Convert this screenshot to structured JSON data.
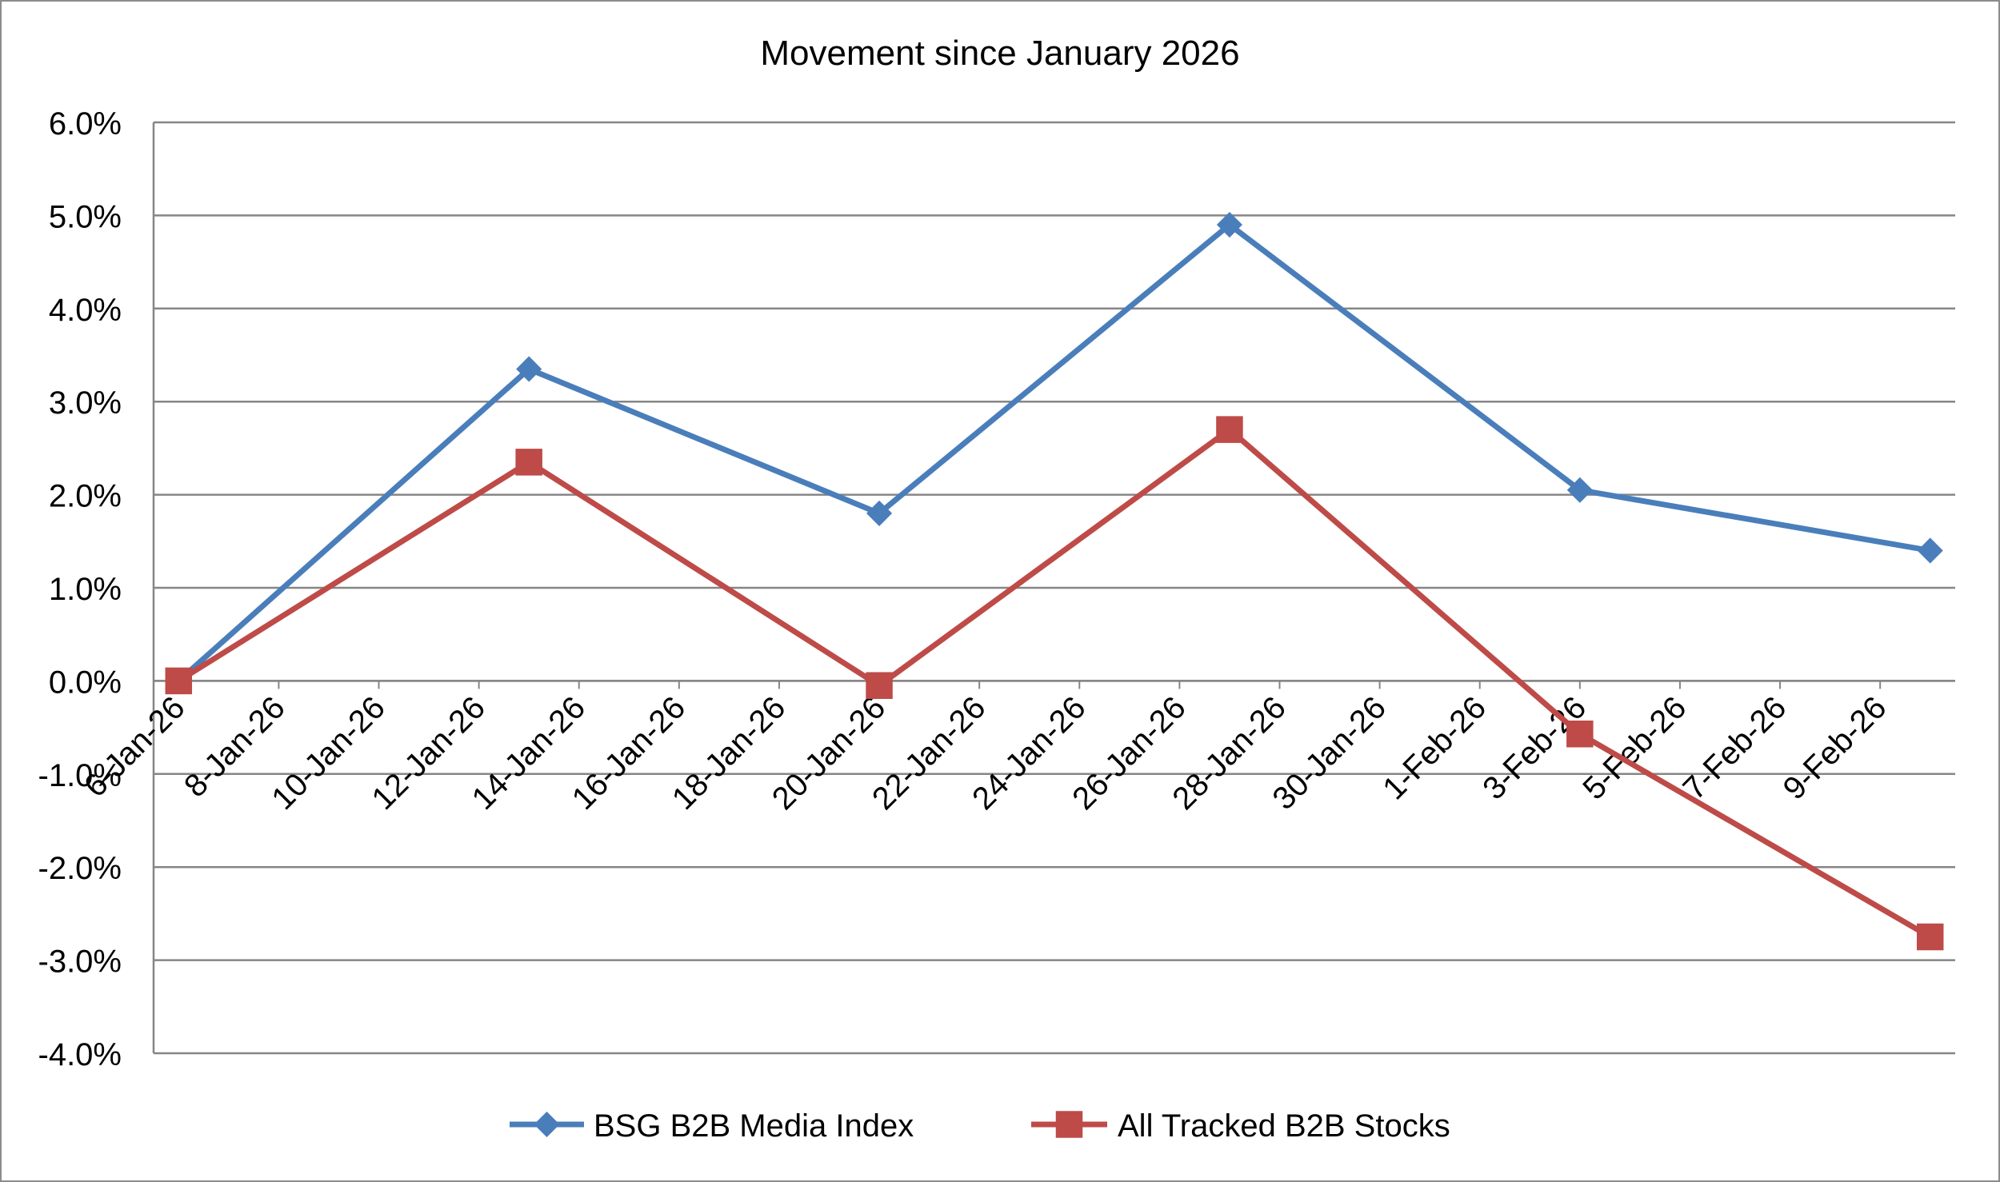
{
  "chart_data": {
    "type": "line",
    "title": "Movement since January 2026",
    "xlabel": "",
    "ylabel": "",
    "ylim": [
      -0.04,
      0.06
    ],
    "yticks": [
      "6.0%",
      "5.0%",
      "4.0%",
      "3.0%",
      "2.0%",
      "1.0%",
      "0.0%",
      "-1.0%",
      "-2.0%",
      "-3.0%",
      "-4.0%"
    ],
    "x_range": [
      "6-Jan-26",
      "11-Feb-26"
    ],
    "xticks": [
      "6-Jan-26",
      "8-Jan-26",
      "10-Jan-26",
      "12-Jan-26",
      "14-Jan-26",
      "16-Jan-26",
      "18-Jan-26",
      "20-Jan-26",
      "22-Jan-26",
      "24-Jan-26",
      "26-Jan-26",
      "28-Jan-26",
      "30-Jan-26",
      "1-Feb-26",
      "3-Feb-26",
      "5-Feb-26",
      "7-Feb-26",
      "9-Feb-26"
    ],
    "grid": true,
    "legend_position": "bottom",
    "series": [
      {
        "name": "BSG B2B Media Index",
        "color": "#4a7ebb",
        "marker": "diamond",
        "x": [
          "6-Jan-26",
          "13-Jan-26",
          "20-Jan-26",
          "27-Jan-26",
          "3-Feb-26",
          "10-Feb-26"
        ],
        "values": [
          0.0,
          0.0335,
          0.018,
          0.049,
          0.0205,
          0.014
        ]
      },
      {
        "name": "All Tracked B2B Stocks",
        "color": "#be4b48",
        "marker": "square",
        "x": [
          "6-Jan-26",
          "13-Jan-26",
          "20-Jan-26",
          "27-Jan-26",
          "3-Feb-26",
          "10-Feb-26"
        ],
        "values": [
          0.0,
          0.0235,
          -0.0005,
          0.027,
          -0.0057,
          -0.0275
        ]
      }
    ]
  }
}
